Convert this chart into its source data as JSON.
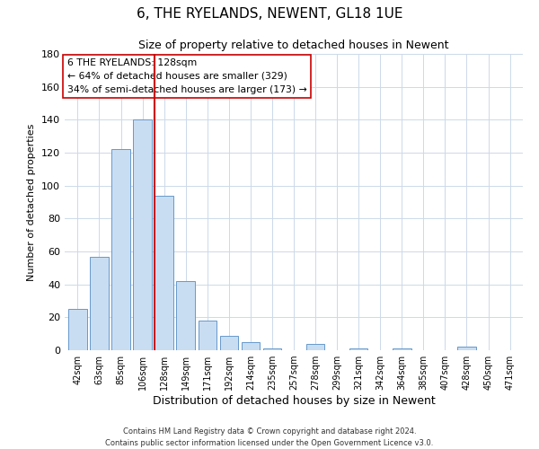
{
  "title": "6, THE RYELANDS, NEWENT, GL18 1UE",
  "subtitle": "Size of property relative to detached houses in Newent",
  "xlabel": "Distribution of detached houses by size in Newent",
  "ylabel": "Number of detached properties",
  "bar_labels": [
    "42sqm",
    "63sqm",
    "85sqm",
    "106sqm",
    "128sqm",
    "149sqm",
    "171sqm",
    "192sqm",
    "214sqm",
    "235sqm",
    "257sqm",
    "278sqm",
    "299sqm",
    "321sqm",
    "342sqm",
    "364sqm",
    "385sqm",
    "407sqm",
    "428sqm",
    "450sqm",
    "471sqm"
  ],
  "bar_values": [
    25,
    57,
    122,
    140,
    94,
    42,
    18,
    9,
    5,
    1,
    0,
    4,
    0,
    1,
    0,
    1,
    0,
    0,
    2,
    0,
    0
  ],
  "bar_color": "#c9ddf2",
  "bar_edge_color": "#6699cc",
  "property_bar_index": 4,
  "vline_color": "#cc0000",
  "annotation_line1": "6 THE RYELANDS: 128sqm",
  "annotation_line2": "← 64% of detached houses are smaller (329)",
  "annotation_line3": "34% of semi-detached houses are larger (173) →",
  "annotation_box_color": "#ffffff",
  "annotation_box_edge_color": "#cc0000",
  "ylim": [
    0,
    180
  ],
  "yticks": [
    0,
    20,
    40,
    60,
    80,
    100,
    120,
    140,
    160,
    180
  ],
  "footer_line1": "Contains HM Land Registry data © Crown copyright and database right 2024.",
  "footer_line2": "Contains public sector information licensed under the Open Government Licence v3.0.",
  "background_color": "#ffffff",
  "grid_color": "#ccd9ea"
}
